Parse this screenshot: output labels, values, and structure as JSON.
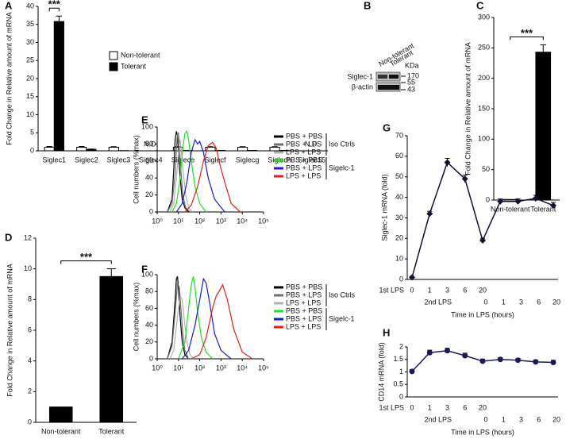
{
  "chart_data": [
    {
      "type": "bar",
      "panel": "A",
      "ylabel": "Fold Change in Relative amount of mRNA",
      "categories": [
        "Siglec1",
        "Siglec2",
        "Siglec3",
        "Siglec4",
        "Siglece",
        "Siglecf",
        "Siglecg",
        "Siglech",
        "Siglec15"
      ],
      "series": [
        {
          "name": "Non-tolerant",
          "color": "#ffffff",
          "values": [
            1,
            1,
            1,
            null,
            1,
            1,
            1,
            1,
            null
          ],
          "errors": [
            0.2,
            0.2,
            0.15,
            null,
            0.15,
            0.15,
            0.15,
            0.15,
            null
          ],
          "value_labels": [
            null,
            null,
            null,
            "N.D.",
            null,
            null,
            null,
            null,
            "N.D."
          ]
        },
        {
          "name": "Tolerant",
          "color": "#000000",
          "values": [
            35.8,
            0.4,
            0.05,
            null,
            0.1,
            0.1,
            0.1,
            0.1,
            null
          ],
          "errors": [
            1.5,
            0.1,
            null,
            null,
            null,
            null,
            null,
            null,
            null
          ]
        }
      ],
      "significance": "***",
      "ylim": [
        0,
        40
      ],
      "yticks": [
        0,
        5,
        10,
        15,
        20,
        25,
        30,
        35,
        40
      ]
    },
    {
      "type": "blot",
      "panel": "B",
      "lanes": [
        "Non-tolerant",
        "Tolerant"
      ],
      "unit": "KDa",
      "rows": [
        "Siglec-1",
        "β-actin"
      ],
      "markers": [
        170,
        55,
        43
      ]
    },
    {
      "type": "bar",
      "panel": "C",
      "ylabel": "Fold Change in Relative amount of mRNA",
      "categories": [
        "Non-tolerant",
        "Tolerant"
      ],
      "values": [
        1,
        243
      ],
      "errors": [
        null,
        12
      ],
      "colors": [
        "#ffffff",
        "#000000"
      ],
      "significance": "***",
      "ylim": [
        0,
        300
      ],
      "yticks": [
        0,
        50,
        100,
        150,
        200,
        250,
        300
      ]
    },
    {
      "type": "bar",
      "panel": "D",
      "ylabel": "Fold Change in Relative amount of mRNA",
      "categories": [
        "Non-tolerant",
        "Tolerant"
      ],
      "values": [
        1,
        9.5
      ],
      "errors": [
        null,
        0.5
      ],
      "colors": [
        "#000000",
        "#000000"
      ],
      "significance": "***",
      "ylim": [
        0,
        12
      ],
      "yticks": [
        0,
        2,
        4,
        6,
        8,
        10,
        12
      ]
    },
    {
      "type": "flow",
      "panel": "E",
      "ylabel": "Cell numbers (%max)",
      "log_x": true,
      "xlim": [
        1,
        100000
      ],
      "xticks": [
        {
          "value": 1,
          "label": "10⁰"
        },
        {
          "value": 10,
          "label": "10¹"
        },
        {
          "value": 100,
          "label": "10²"
        },
        {
          "value": 1000,
          "label": "10³"
        },
        {
          "value": 10000,
          "label": "10⁴"
        },
        {
          "value": 100000,
          "label": "10⁵"
        }
      ],
      "ylim": [
        0,
        100
      ],
      "yticks": [
        0,
        20,
        40,
        60,
        80,
        100
      ],
      "series": [
        {
          "name": "PBS + PBS",
          "group": "Iso Ctrls",
          "color": "#000000",
          "x": [
            3,
            5,
            6,
            7,
            8,
            9,
            10,
            12,
            15,
            20,
            30
          ],
          "values": [
            0,
            15,
            50,
            85,
            95,
            90,
            70,
            40,
            15,
            5,
            0
          ]
        },
        {
          "name": "PBS + LPS",
          "group": "Iso Ctrls",
          "color": "#707070",
          "x": [
            3,
            5,
            7,
            8,
            9,
            10,
            11,
            13,
            16,
            22,
            35
          ],
          "values": [
            0,
            10,
            45,
            75,
            92,
            93,
            80,
            50,
            20,
            5,
            0
          ]
        },
        {
          "name": "LPS + LPS",
          "group": "Iso Ctrls",
          "color": "#b0b0b0",
          "x": [
            4,
            6,
            8,
            10,
            12,
            14,
            17,
            22,
            30,
            45
          ],
          "values": [
            0,
            10,
            40,
            70,
            85,
            70,
            45,
            20,
            5,
            0
          ]
        },
        {
          "name": "PBS + PBS",
          "group": "Sigelc-1",
          "color": "#22dd22",
          "x": [
            5,
            8,
            12,
            16,
            20,
            25,
            30,
            40,
            60,
            100,
            200
          ],
          "values": [
            0,
            10,
            40,
            75,
            92,
            95,
            85,
            60,
            30,
            10,
            0
          ]
        },
        {
          "name": "PBS + LPS",
          "group": "Sigelc-1",
          "color": "#1a1acc",
          "x": [
            8,
            15,
            25,
            40,
            60,
            80,
            100,
            150,
            250,
            500,
            1500
          ],
          "values": [
            0,
            10,
            35,
            70,
            85,
            80,
            83,
            70,
            40,
            15,
            0
          ]
        },
        {
          "name": "LPS + LPS",
          "group": "Sigelc-1",
          "color": "#e02020",
          "x": [
            20,
            40,
            80,
            150,
            250,
            400,
            600,
            900,
            1500,
            3000,
            8000
          ],
          "values": [
            0,
            8,
            30,
            60,
            78,
            82,
            75,
            55,
            35,
            10,
            0
          ]
        }
      ]
    },
    {
      "type": "flow",
      "panel": "F",
      "ylabel": "Cell numbers (%max)",
      "log_x": true,
      "xlim": [
        1,
        100000
      ],
      "xticks": [
        {
          "value": 1,
          "label": "10⁰"
        },
        {
          "value": 10,
          "label": "10¹"
        },
        {
          "value": 100,
          "label": "10²"
        },
        {
          "value": 1000,
          "label": "10³"
        },
        {
          "value": 10000,
          "label": "10⁴"
        },
        {
          "value": 100000,
          "label": "10⁵"
        }
      ],
      "ylim": [
        0,
        100
      ],
      "yticks": [
        0,
        20,
        40,
        60,
        80,
        100
      ],
      "series": [
        {
          "name": "PBS + PBS",
          "group": "Iso Ctrls",
          "color": "#000000",
          "x": [
            3,
            5,
            7,
            8,
            9,
            10,
            12,
            15,
            20,
            30
          ],
          "values": [
            0,
            20,
            70,
            95,
            98,
            85,
            50,
            20,
            5,
            0
          ]
        },
        {
          "name": "PBS + LPS",
          "group": "Iso Ctrls",
          "color": "#707070",
          "x": [
            3,
            5,
            7,
            9,
            11,
            13,
            16,
            20,
            30
          ],
          "values": [
            0,
            15,
            55,
            90,
            85,
            60,
            30,
            10,
            0
          ]
        },
        {
          "name": "LPS + LPS",
          "group": "Iso Ctrls",
          "color": "#b0b0b0",
          "x": [
            4,
            6,
            9,
            12,
            15,
            20,
            25,
            35,
            50
          ],
          "values": [
            0,
            10,
            50,
            75,
            70,
            40,
            20,
            5,
            0
          ]
        },
        {
          "name": "PBS + PBS",
          "group": "Sigelc-1",
          "color": "#22dd22",
          "x": [
            10,
            20,
            30,
            40,
            50,
            60,
            80,
            120,
            200,
            400
          ],
          "values": [
            0,
            20,
            60,
            88,
            98,
            85,
            55,
            25,
            8,
            0
          ]
        },
        {
          "name": "PBS + LPS",
          "group": "Sigelc-1",
          "color": "#1a1acc",
          "x": [
            15,
            30,
            60,
            100,
            150,
            200,
            300,
            500,
            1000,
            3000
          ],
          "values": [
            0,
            10,
            40,
            70,
            95,
            90,
            65,
            30,
            10,
            0
          ]
        },
        {
          "name": "LPS + LPS",
          "group": "Sigelc-1",
          "color": "#e02020",
          "x": [
            40,
            100,
            200,
            400,
            600,
            900,
            1200,
            2000,
            4000,
            10000,
            30000
          ],
          "values": [
            0,
            5,
            25,
            60,
            75,
            82,
            88,
            70,
            35,
            8,
            0
          ]
        }
      ]
    },
    {
      "type": "line",
      "panel": "G",
      "ylabel": "Siglec-1 mRNA (fold)",
      "xlabel": "Time in LPS (hours)",
      "marker": "diamond",
      "color": "#111133",
      "x_label_rows": [
        {
          "name": "1st LPS",
          "labels": [
            "0",
            "1",
            "3",
            "6",
            "20",
            null,
            null,
            null,
            null
          ]
        },
        {
          "name": "2nd LPS",
          "labels": [
            null,
            null,
            null,
            null,
            "0",
            "1",
            "3",
            "6",
            "20"
          ]
        }
      ],
      "values": [
        1,
        32,
        57,
        49,
        19,
        38,
        38,
        39.5,
        36
      ],
      "errors": [
        0.5,
        1.2,
        2,
        1.8,
        1,
        1.2,
        1.2,
        1.5,
        1.5
      ],
      "ylim": [
        0,
        70
      ],
      "yticks": [
        0,
        10,
        20,
        30,
        40,
        50,
        60,
        70
      ]
    },
    {
      "type": "line",
      "panel": "H",
      "ylabel": "CD14 mRNA (fold)",
      "xlabel": "Time in LPS (hours)",
      "marker": "circle",
      "color": "#1a1a5a",
      "x_label_rows": [
        {
          "name": "1st LPS",
          "labels": [
            "0",
            "1",
            "3",
            "6",
            "20",
            null,
            null,
            null,
            null
          ]
        },
        {
          "name": "2nd LPS",
          "labels": [
            null,
            null,
            null,
            null,
            "0",
            "1",
            "3",
            "6",
            "20"
          ]
        }
      ],
      "values": [
        1.02,
        1.77,
        1.85,
        1.65,
        1.43,
        1.5,
        1.47,
        1.4,
        1.38
      ],
      "errors": [
        0.07,
        0.1,
        0.1,
        0.1,
        0.08,
        0.07,
        0.07,
        0.08,
        0.08
      ],
      "ylim": [
        0,
        2
      ],
      "yticks": [
        0,
        0.5,
        1,
        1.5,
        2
      ]
    }
  ]
}
